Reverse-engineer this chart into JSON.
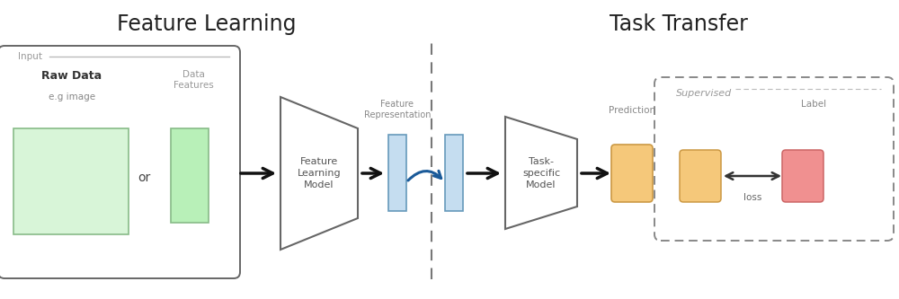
{
  "bg_color": "#ffffff",
  "title_feature_learning": "Feature Learning",
  "title_task_transfer": "Task Transfer",
  "title_fontsize": 17,
  "colors": {
    "green_rect": "#d8f5d8",
    "green_tall": "#b8f0b8",
    "blue_rect": "#c5ddf0",
    "orange_rect": "#f5c87a",
    "pink_rect": "#f09090",
    "arrow": "#111111",
    "curve_arrow": "#1a5a99",
    "dashed_line": "#777777",
    "box_border": "#666666",
    "supervised_border": "#888888"
  },
  "texts": {
    "input_label": "Input",
    "raw_data": "Raw Data",
    "eg_image": "e.g image",
    "data_features": "Data\nFeatures",
    "or": "or",
    "feature_learning_model": "Feature\nLearning\nModel",
    "feature_representation": "Feature\nRepresentation",
    "task_specific_model": "Task-\nspecific\nModel",
    "prediction": "Prediction",
    "supervised": "Supervised",
    "label": "Label",
    "loss": "loss"
  },
  "layout": {
    "fig_width": 10.0,
    "fig_height": 3.33,
    "xmax": 10.0,
    "ymax": 3.33
  }
}
